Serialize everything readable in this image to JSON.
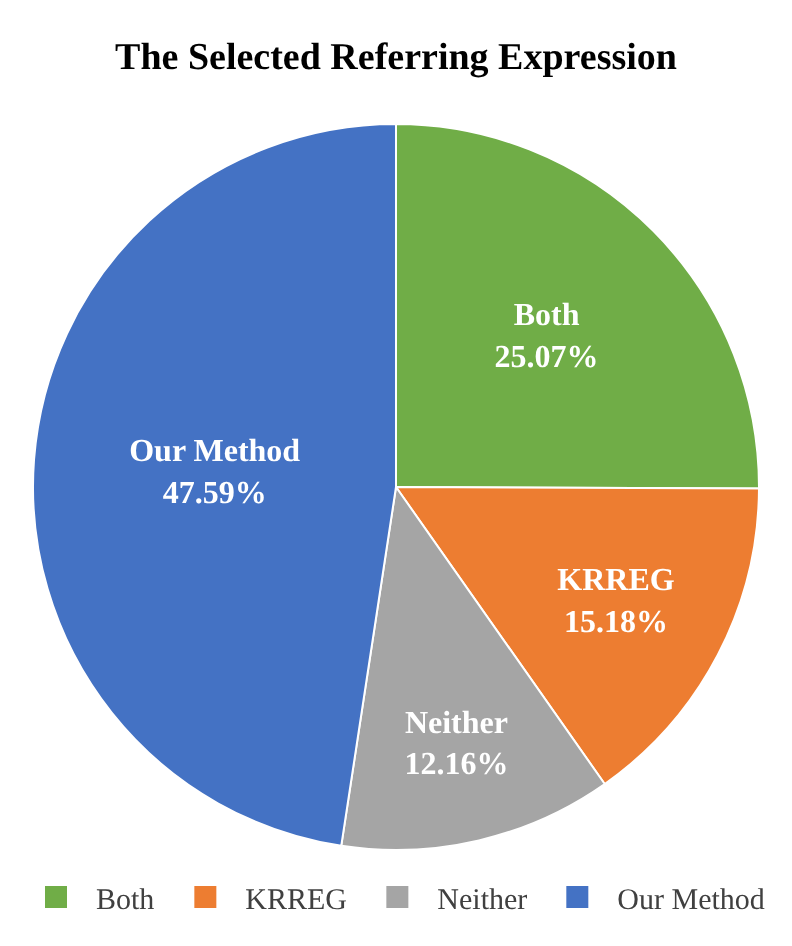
{
  "chart_data": {
    "type": "pie",
    "title": "The Selected Referring Expression",
    "categories": [
      "Both",
      "KRREG",
      "Neither",
      "Our Method"
    ],
    "values": [
      25.07,
      15.18,
      12.16,
      47.59
    ],
    "colors": [
      "#70ad47",
      "#ed7d31",
      "#a5a5a5",
      "#4472c4"
    ],
    "value_labels": [
      "25.07%",
      "15.18%",
      "12.16%",
      "47.59%"
    ],
    "legend": "bottom"
  }
}
